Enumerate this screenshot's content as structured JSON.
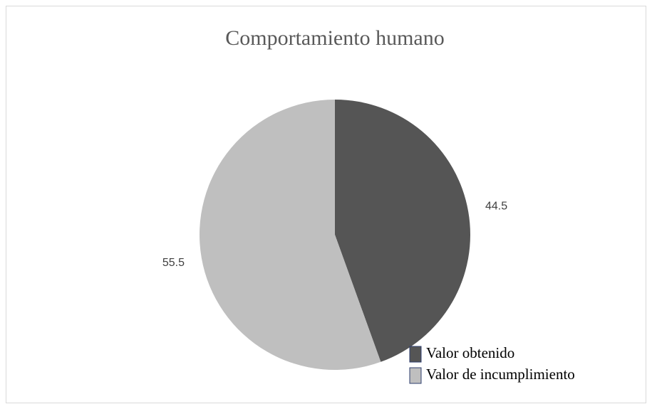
{
  "chart_data": {
    "type": "pie",
    "title": "Comportamiento humano",
    "categories": [
      "Valor obtenido",
      "Valor de incumplimiento"
    ],
    "values": [
      44.5,
      55.5
    ],
    "colors": [
      "#555555",
      "#bfbfbf"
    ]
  }
}
